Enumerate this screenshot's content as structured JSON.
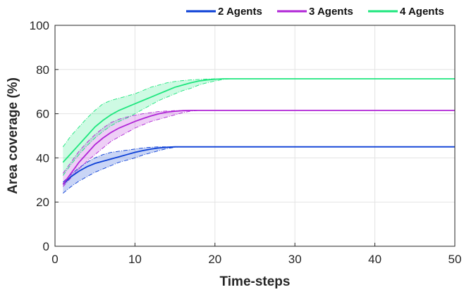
{
  "chart_data": {
    "type": "line",
    "title": "",
    "xlabel": "Time-steps",
    "ylabel": "Area coverage (%)",
    "xlim": [
      0,
      50
    ],
    "ylim": [
      0,
      100
    ],
    "xticks": [
      0,
      10,
      20,
      30,
      40,
      50
    ],
    "yticks": [
      0,
      20,
      40,
      60,
      80,
      100
    ],
    "grid": true,
    "legend_position": "top-right, above plot",
    "series": [
      {
        "name": "2 Agents",
        "color": "#0b3fd6",
        "x": [
          1,
          2,
          3,
          4,
          5,
          6,
          7,
          8,
          9,
          10,
          11,
          12,
          13,
          14,
          15,
          16,
          18,
          20,
          30,
          40,
          50
        ],
        "mean": [
          28,
          31.5,
          34,
          36,
          37.5,
          38.5,
          39.5,
          40.5,
          41.5,
          42.5,
          43.3,
          44,
          44.5,
          44.8,
          45,
          45,
          45,
          45,
          45,
          45,
          45
        ],
        "upper": [
          29,
          32.5,
          35.5,
          38,
          40,
          41.5,
          42.5,
          43,
          43.5,
          44,
          44.5,
          44.8,
          45,
          45,
          45,
          45,
          45,
          45,
          45,
          45,
          45
        ],
        "lower": [
          24,
          27,
          29.5,
          31.5,
          33.5,
          35,
          36.5,
          38,
          39,
          40,
          41.3,
          42.3,
          43.3,
          44.2,
          44.8,
          45,
          45,
          45,
          45,
          45,
          45
        ]
      },
      {
        "name": "3 Agents",
        "color": "#b025d6",
        "x": [
          1,
          2,
          3,
          4,
          5,
          6,
          7,
          8,
          9,
          10,
          11,
          12,
          13,
          14,
          15,
          16,
          17,
          18,
          20,
          30,
          40,
          50
        ],
        "mean": [
          28,
          33,
          38,
          42,
          46,
          49,
          51.5,
          53.5,
          55,
          56.5,
          57.8,
          59,
          60,
          60.7,
          61.1,
          61.4,
          61.5,
          61.5,
          61.5,
          61.5,
          61.5,
          61.5
        ],
        "upper": [
          33,
          38,
          43,
          47,
          50.5,
          53.5,
          56,
          57.5,
          58.5,
          59.3,
          60,
          60.5,
          61,
          61.2,
          61.4,
          61.5,
          61.5,
          61.5,
          61.5,
          61.5,
          61.5,
          61.5
        ],
        "lower": [
          27,
          31,
          35,
          38.5,
          41.5,
          44.5,
          47.5,
          49.5,
          51.5,
          53.5,
          55,
          56.5,
          57.5,
          58.5,
          59.5,
          60.5,
          61.2,
          61.5,
          61.5,
          61.5,
          61.5,
          61.5
        ]
      },
      {
        "name": "4 Agents",
        "color": "#1ee67e",
        "x": [
          1,
          2,
          3,
          4,
          5,
          6,
          7,
          8,
          9,
          10,
          11,
          12,
          13,
          14,
          15,
          16,
          17,
          18,
          19,
          20,
          21,
          22,
          25,
          30,
          40,
          50
        ],
        "mean": [
          38,
          42,
          46,
          50,
          54,
          57,
          59.5,
          61.5,
          63,
          64.5,
          66,
          67.5,
          69,
          70.5,
          72,
          73,
          74,
          74.8,
          75.3,
          75.6,
          75.8,
          75.8,
          75.8,
          75.8,
          75.8,
          75.8
        ],
        "upper": [
          45,
          50,
          54,
          58,
          61.5,
          64.5,
          66,
          67,
          68,
          69,
          70.5,
          72,
          73,
          74,
          74.6,
          75,
          75.3,
          75.5,
          75.7,
          75.8,
          75.8,
          75.8,
          75.8,
          75.8,
          75.8,
          75.8
        ],
        "lower": [
          32,
          37,
          41.5,
          45.5,
          49,
          52,
          54.5,
          56.5,
          58,
          60,
          62,
          64,
          66,
          67.5,
          69,
          70.5,
          71.5,
          73,
          74,
          74.8,
          75.5,
          75.8,
          75.8,
          75.8,
          75.8,
          75.8
        ]
      }
    ]
  }
}
